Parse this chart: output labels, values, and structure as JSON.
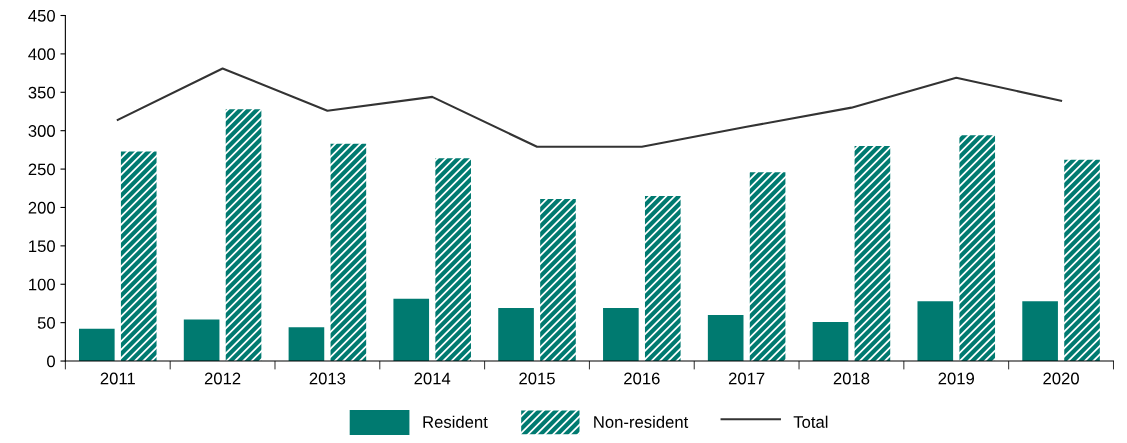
{
  "chart_data": {
    "type": "bar",
    "categories": [
      "2011",
      "2012",
      "2013",
      "2014",
      "2015",
      "2016",
      "2017",
      "2018",
      "2019",
      "2020"
    ],
    "series": [
      {
        "name": "Resident",
        "color": "#007a70",
        "values": [
          42,
          54,
          44,
          81,
          69,
          69,
          60,
          51,
          78,
          78
        ]
      },
      {
        "name": "Non-resident",
        "color": "#007a70",
        "values": [
          273,
          328,
          283,
          264,
          211,
          215,
          246,
          280,
          294,
          262
        ]
      },
      {
        "name": "Total",
        "type": "line",
        "color": "#333333",
        "values": [
          314,
          381,
          326,
          344,
          279,
          279,
          305,
          330,
          369,
          339
        ]
      }
    ],
    "ylim": [
      0,
      450
    ],
    "yticks": [
      0,
      50,
      100,
      150,
      200,
      250,
      300,
      350,
      400,
      450
    ],
    "grid": false,
    "legend": "bottom"
  }
}
